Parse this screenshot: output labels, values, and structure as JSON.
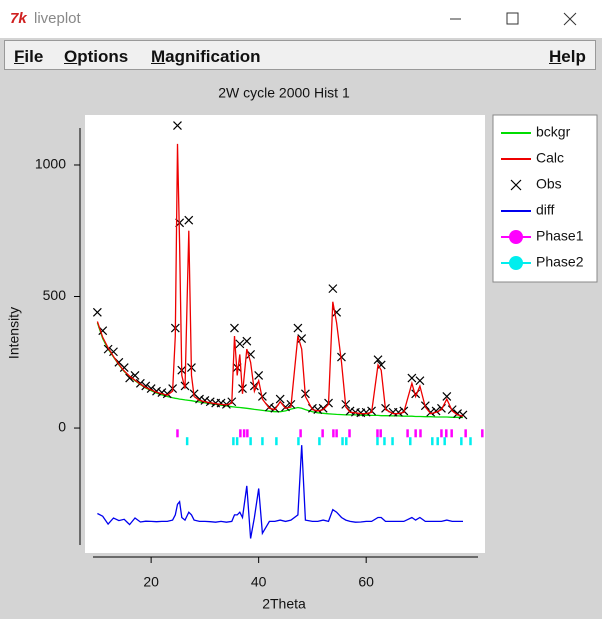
{
  "window": {
    "title": "liveplot",
    "menu_left": [
      "File",
      "Options",
      "Magnification"
    ],
    "menu_right": [
      "Help"
    ]
  },
  "chart_data": {
    "type": "line",
    "title": "2W cycle 2000 Hist 1",
    "xlabel": "2Theta",
    "ylabel": "Intensity",
    "xlim": [
      7.7,
      82.1
    ],
    "ylim": [
      -475,
      1190
    ],
    "xticks": [
      20,
      40,
      60
    ],
    "yticks": [
      0,
      500,
      1000
    ],
    "legend": "outside-right",
    "x": [
      10,
      11,
      12,
      13,
      14,
      15,
      16,
      17,
      18,
      19,
      20,
      21,
      22,
      23,
      24,
      24.5,
      24.9,
      25.3,
      25.7,
      26.3,
      27,
      27.5,
      28,
      29,
      30,
      31,
      32,
      33,
      34,
      35,
      35.5,
      36,
      36.5,
      37,
      37.8,
      38.5,
      39.2,
      40,
      40.7,
      42,
      43,
      44,
      45,
      46,
      47.3,
      48,
      48.7,
      50,
      51,
      52,
      53,
      53.8,
      54.5,
      55.4,
      56.2,
      57,
      58,
      59,
      60,
      61,
      62.2,
      62.8,
      63.6,
      65,
      66,
      67,
      68.5,
      69.2,
      70,
      71,
      72,
      73,
      74,
      75,
      76,
      77,
      78
    ],
    "series": [
      {
        "name": "bckgr",
        "color": "#00dd00",
        "style": "line",
        "values": [
          400,
          340,
          300,
          270,
          240,
          215,
          195,
          180,
          165,
          152,
          142,
          133,
          126,
          120,
          115,
          113,
          112,
          110,
          109,
          107,
          105,
          104,
          102,
          99,
          96,
          93,
          90,
          87,
          84,
          81,
          80,
          79,
          78,
          77,
          75,
          73,
          71,
          69,
          67,
          64,
          62,
          62,
          65,
          72,
          78,
          75,
          70,
          62,
          58,
          56,
          54,
          53,
          52,
          51,
          50,
          50,
          50,
          49,
          49,
          48,
          48,
          47,
          47,
          46,
          46,
          45,
          45,
          44,
          44,
          43,
          43,
          42,
          42,
          42,
          41,
          41,
          40
        ]
      },
      {
        "name": "Calc",
        "color": "#ee0000",
        "style": "line",
        "values": [
          405,
          345,
          305,
          272,
          242,
          217,
          197,
          182,
          167,
          154,
          145,
          136,
          130,
          125,
          140,
          350,
          1080,
          700,
          200,
          150,
          750,
          200,
          120,
          105,
          100,
          96,
          93,
          90,
          88,
          95,
          350,
          200,
          280,
          130,
          300,
          250,
          140,
          180,
          110,
          75,
          70,
          100,
          75,
          80,
          350,
          300,
          120,
          70,
          65,
          70,
          90,
          480,
          400,
          250,
          80,
          60,
          58,
          55,
          55,
          60,
          240,
          220,
          70,
          55,
          55,
          60,
          170,
          120,
          160,
          80,
          55,
          60,
          70,
          110,
          65,
          50,
          45
        ]
      },
      {
        "name": "Obs",
        "color": "#000000",
        "style": "marker",
        "values": [
          440,
          370,
          300,
          290,
          250,
          230,
          190,
          200,
          170,
          160,
          150,
          140,
          135,
          130,
          150,
          380,
          1150,
          780,
          220,
          160,
          790,
          230,
          130,
          110,
          105,
          100,
          95,
          95,
          90,
          100,
          380,
          230,
          320,
          150,
          330,
          280,
          160,
          200,
          120,
          80,
          75,
          110,
          80,
          90,
          380,
          340,
          130,
          75,
          70,
          75,
          95,
          530,
          440,
          270,
          90,
          65,
          60,
          58,
          60,
          65,
          260,
          240,
          75,
          60,
          60,
          65,
          190,
          130,
          180,
          85,
          60,
          65,
          75,
          120,
          70,
          55,
          50
        ]
      },
      {
        "name": "diff",
        "color": "#0000ee",
        "style": "line",
        "values": [
          -325,
          -335,
          -365,
          -342,
          -352,
          -347,
          -367,
          -342,
          -357,
          -354,
          -355,
          -356,
          -355,
          -355,
          -350,
          -330,
          -290,
          -280,
          -340,
          -350,
          -320,
          -330,
          -350,
          -355,
          -355,
          -356,
          -358,
          -355,
          -358,
          -355,
          -330,
          -330,
          -320,
          -340,
          -220,
          -420,
          -340,
          -230,
          -400,
          -355,
          -355,
          -350,
          -355,
          -350,
          -330,
          -65,
          -350,
          -355,
          -355,
          -350,
          -355,
          -310,
          -320,
          -340,
          -350,
          -355,
          -358,
          -357,
          -355,
          -355,
          -340,
          -340,
          -355,
          -355,
          -355,
          -355,
          -340,
          -350,
          -340,
          -355,
          -355,
          -355,
          -355,
          -350,
          -355,
          -355,
          -355
        ]
      },
      {
        "name": "Phase1",
        "color": "#ff00ff",
        "style": "tick",
        "x": [
          24.9,
          36.6,
          37.3,
          37.9,
          47.8,
          51.9,
          53.9,
          54.5,
          56.9,
          62.1,
          62.7,
          67.7,
          69.2,
          70.1,
          74.0,
          74.9,
          75.9,
          78.5,
          81.6
        ],
        "values": [
          -20,
          -20,
          -20,
          -20,
          -20,
          -20,
          -20,
          -20,
          -20,
          -20,
          -20,
          -20,
          -20,
          -20,
          -20,
          -20,
          -20,
          -20,
          -20
        ]
      },
      {
        "name": "Phase2",
        "color": "#00eeee",
        "style": "tick",
        "x": [
          26.7,
          35.3,
          36.0,
          38.5,
          40.7,
          43.3,
          47.4,
          51.3,
          55.6,
          56.3,
          62.1,
          63.4,
          64.9,
          68.2,
          72.3,
          73.3,
          74.6,
          77.7,
          79.4
        ],
        "values": [
          -50,
          -50,
          -50,
          -50,
          -50,
          -50,
          -50,
          -50,
          -50,
          -50,
          -50,
          -50,
          -50,
          -50,
          -50,
          -50,
          -50,
          -50,
          -50
        ]
      }
    ]
  }
}
